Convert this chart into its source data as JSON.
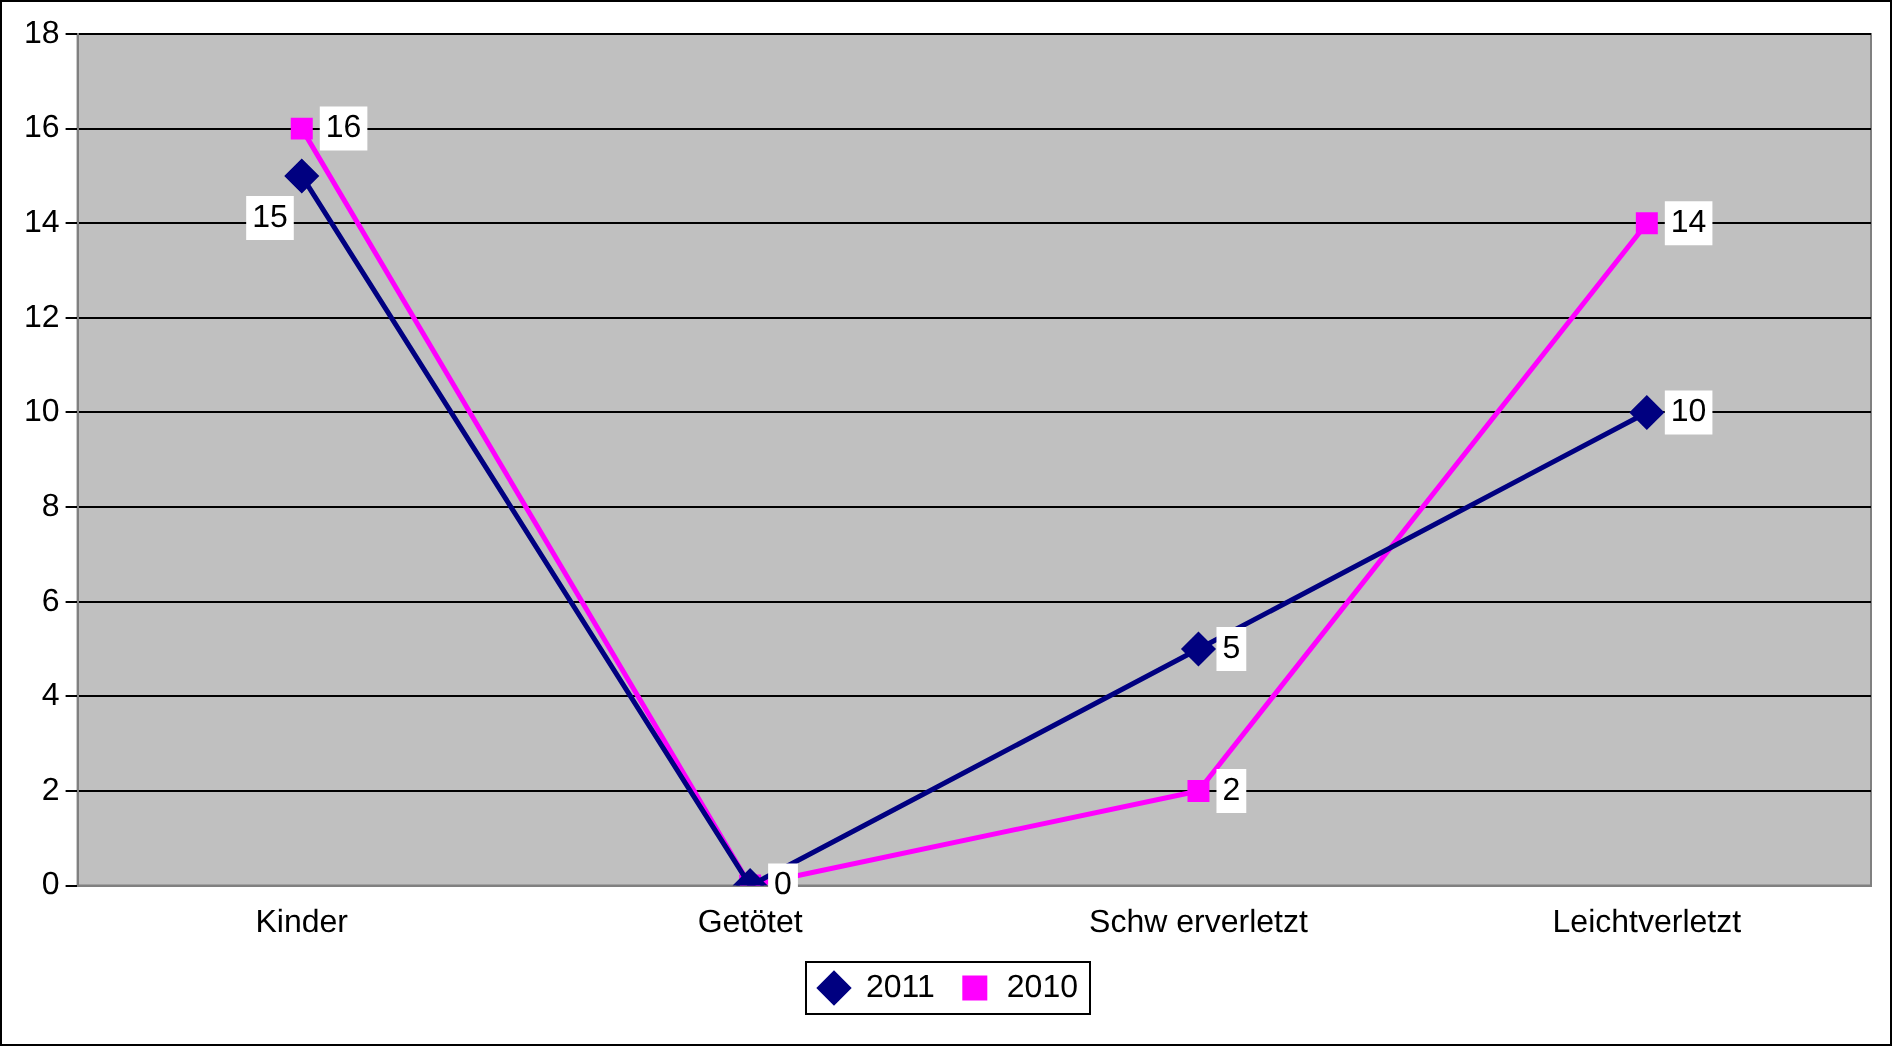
{
  "chart_data": {
    "type": "line",
    "categories": [
      "Kinder",
      "Getötet",
      "Schw erverletzt",
      "Leichtverletzt"
    ],
    "series": [
      {
        "name": "2011",
        "color": "#000080",
        "marker": "diamond",
        "values": [
          15,
          0,
          5,
          10
        ],
        "value_labels": [
          "15",
          "0",
          "5",
          "10"
        ]
      },
      {
        "name": "2010",
        "color": "#ff00ff",
        "marker": "square",
        "values": [
          16,
          0,
          2,
          14
        ],
        "value_labels": [
          "16",
          null,
          "2",
          "14"
        ]
      }
    ],
    "ylim": [
      0,
      18
    ],
    "yticks": [
      0,
      2,
      4,
      6,
      8,
      10,
      12,
      14,
      16,
      18
    ],
    "grid": "y",
    "legend": "bottom"
  }
}
